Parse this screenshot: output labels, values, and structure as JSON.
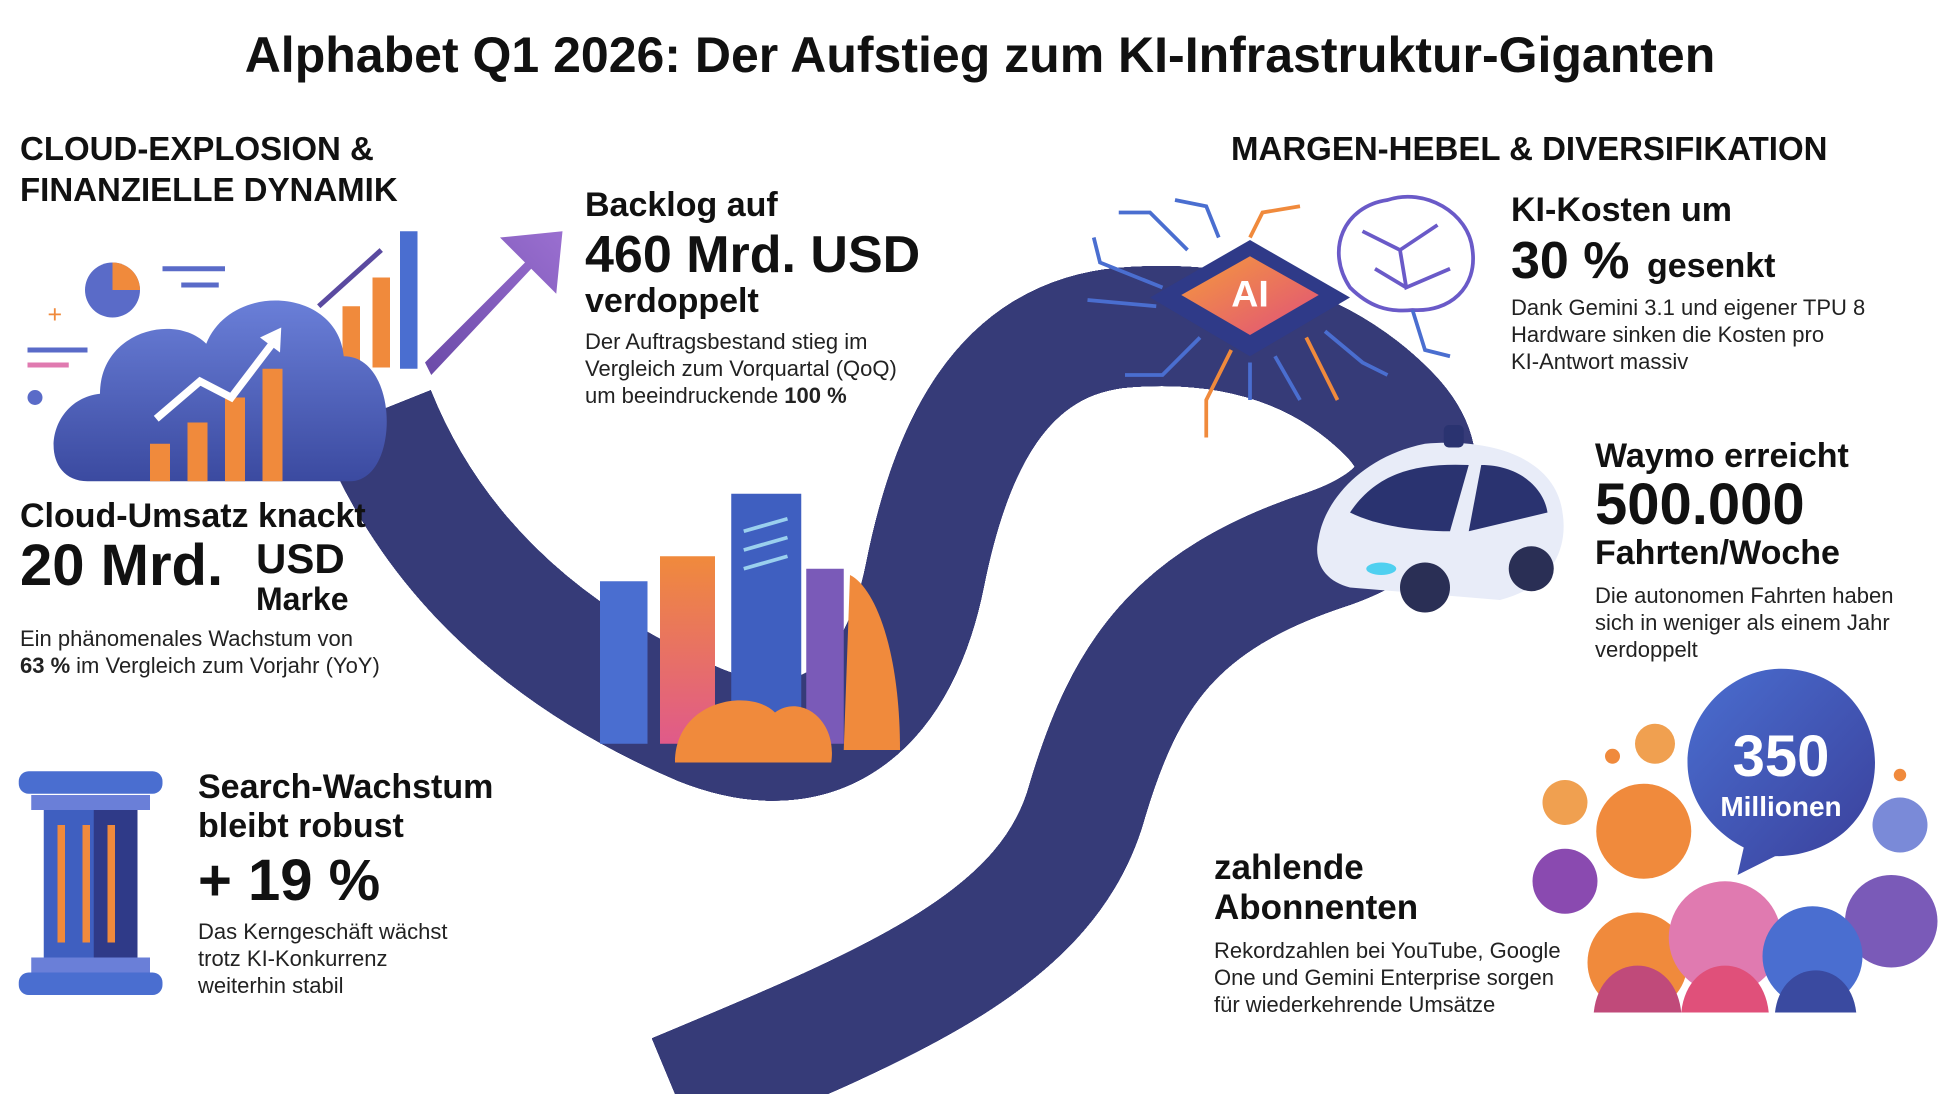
{
  "title": "Alphabet Q1 2026: Der Aufstieg zum KI-Infrastruktur-Giganten",
  "left_heading": [
    "CLOUD-EXPLOSION &",
    "FINANZIELLE DYNAMIK"
  ],
  "right_heading": "MARGEN-HEBEL & DIVERSIFIKATION",
  "backlog": {
    "lead": "Backlog auf",
    "figure": "460 Mrd. USD",
    "tail": "verdoppelt",
    "description": [
      "Der Auftragsbestand stieg im",
      "Vergleich zum Vorquartal (QoQ)",
      "um beeindruckende"
    ],
    "description_bold": "100 %"
  },
  "cloud": {
    "lead": "Cloud-Umsatz knackt",
    "figure": "20 Mrd.",
    "unit": "USD",
    "tail": "Marke",
    "description": [
      "Ein phänomenales Wachstum von",
      "im Vergleich zum Vorjahr (YoY)"
    ],
    "description_bold": "63 %"
  },
  "search": {
    "lead": [
      "Search-Wachstum",
      "bleibt robust"
    ],
    "figure": "+ 19 %",
    "description": [
      "Das Kerngeschäft wächst",
      "trotz KI-Konkurrenz",
      "weiterhin stabil"
    ]
  },
  "ai_costs": {
    "lead": "KI-Kosten um",
    "figure": "30 %",
    "tail": "gesenkt",
    "description": [
      "Dank Gemini 3.1 und eigener TPU 8",
      "Hardware sinken die Kosten pro",
      "KI-Antwort massiv"
    ]
  },
  "waymo": {
    "lead": "Waymo erreicht",
    "figure": "500.000",
    "tail": "Fahrten/Woche",
    "description": [
      "Die autonomen Fahrten haben",
      "sich in weniger als einem Jahr",
      "verdoppelt"
    ]
  },
  "subscribers": {
    "figure": "350",
    "unit": "Millionen",
    "lead": [
      "zahlende",
      "Abonnenten"
    ],
    "description": [
      "Rekordzahlen bei YouTube, Google",
      "One und Gemini Enterprise sorgen",
      "für wiederkehrende Umsätze"
    ]
  },
  "chip_label": "AI"
}
